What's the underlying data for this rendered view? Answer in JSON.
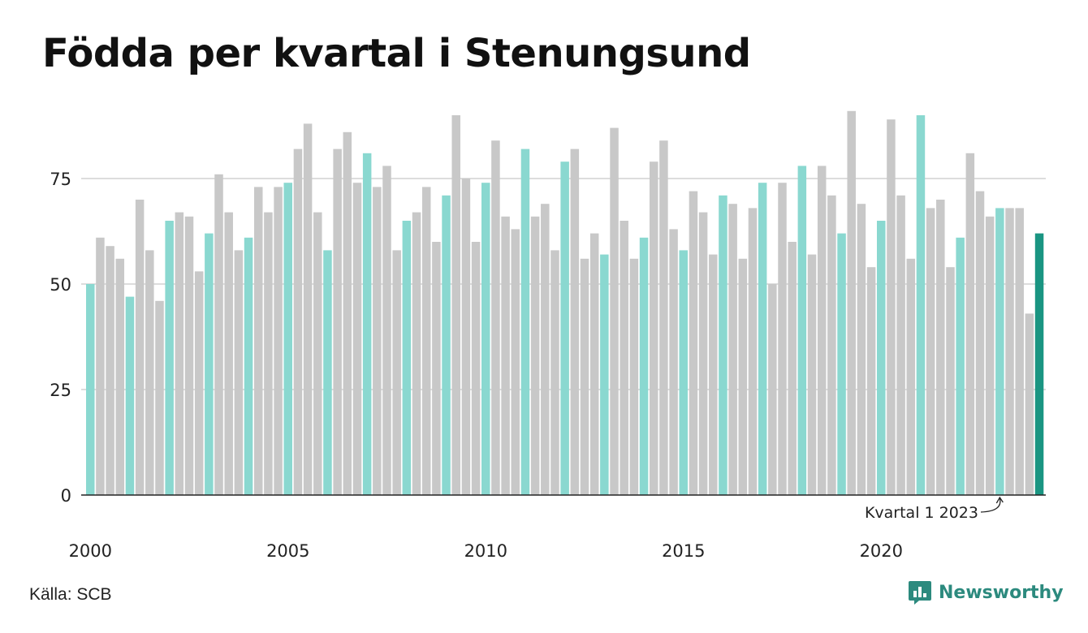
{
  "title": "Födda per kvartal i Stenungsund",
  "source": "Källa: SCB",
  "brand": "Newsworthy",
  "colors": {
    "q1": "#8ad8d0",
    "other": "#c8c8c8",
    "latest": "#1a9582",
    "grid": "#dddddd",
    "axis": "#222222",
    "brand": "#2c8a7e"
  },
  "chart_data": {
    "type": "bar",
    "title": "Födda per kvartal i Stenungsund",
    "xlabel": "",
    "ylabel": "",
    "ylim": [
      0,
      95
    ],
    "y_ticks": [
      0,
      25,
      50,
      75
    ],
    "x_tick_labels": [
      "2000",
      "2005",
      "2010",
      "2015",
      "2020"
    ],
    "grid": true,
    "annotation": "Kvartal 1 2023",
    "start_year": 2000,
    "values": [
      50,
      61,
      59,
      56,
      47,
      70,
      58,
      46,
      65,
      67,
      66,
      53,
      62,
      76,
      67,
      58,
      61,
      73,
      67,
      73,
      74,
      82,
      88,
      67,
      58,
      82,
      86,
      74,
      81,
      73,
      78,
      58,
      65,
      67,
      73,
      60,
      71,
      90,
      75,
      60,
      74,
      84,
      66,
      63,
      82,
      66,
      69,
      58,
      79,
      82,
      56,
      62,
      57,
      87,
      65,
      56,
      61,
      79,
      84,
      63,
      58,
      72,
      67,
      57,
      71,
      69,
      56,
      68,
      74,
      50,
      74,
      60,
      78,
      57,
      78,
      71,
      62,
      91,
      69,
      54,
      65,
      89,
      71,
      56,
      90,
      68,
      70,
      54,
      61,
      81,
      72,
      66,
      68,
      68,
      68,
      43,
      62
    ]
  }
}
